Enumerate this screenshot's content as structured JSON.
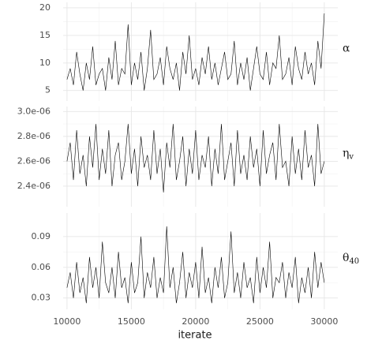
{
  "chart_data": {
    "type": "line",
    "x_label": "iterate",
    "color": "#000000",
    "grid": true,
    "xlim": [
      9700,
      31050
    ],
    "xticks": [
      10000,
      15000,
      20000,
      25000,
      30000
    ],
    "x": [
      10000,
      10250,
      10500,
      10750,
      11000,
      11250,
      11500,
      11750,
      12000,
      12250,
      12500,
      12750,
      13000,
      13250,
      13500,
      13750,
      14000,
      14250,
      14500,
      14750,
      15000,
      15250,
      15500,
      15750,
      16000,
      16250,
      16500,
      16750,
      17000,
      17250,
      17500,
      17750,
      18000,
      18250,
      18500,
      18750,
      19000,
      19250,
      19500,
      19750,
      20000,
      20250,
      20500,
      20750,
      21000,
      21250,
      21500,
      21750,
      22000,
      22250,
      22500,
      22750,
      23000,
      23250,
      23500,
      23750,
      24000,
      24250,
      24500,
      24750,
      25000,
      25250,
      25500,
      25750,
      26000,
      26250,
      26500,
      26750,
      27000,
      27250,
      27500,
      27750,
      28000,
      28250,
      28500,
      28750,
      29000,
      29250,
      29500,
      29750,
      30000
    ],
    "panels": [
      {
        "strip": {
          "symbol": "α"
        },
        "ylim": [
          3.1,
          21
        ],
        "yticks": [
          5,
          10,
          15,
          20
        ],
        "values": [
          7,
          9,
          6,
          12,
          8,
          5,
          10,
          7,
          13,
          6,
          8,
          9,
          5,
          11,
          7,
          14,
          6,
          9,
          8,
          17,
          6,
          10,
          7,
          12,
          5,
          9,
          16,
          7,
          8,
          11,
          6,
          13,
          9,
          7,
          10,
          5,
          12,
          8,
          15,
          7,
          9,
          6,
          11,
          8,
          13,
          7,
          10,
          6,
          9,
          12,
          7,
          8,
          14,
          6,
          10,
          7,
          11,
          5,
          9,
          13,
          8,
          7,
          12,
          6,
          10,
          9,
          15,
          7,
          8,
          11,
          6,
          13,
          9,
          7,
          12,
          8,
          10,
          6,
          14,
          9,
          19
        ]
      },
      {
        "strip": {
          "symbol": "η",
          "subscript": "v"
        },
        "ylim": [
          2.235e-06,
          3.04e-06
        ],
        "yticks": [
          {
            "value": 2.4e-06,
            "label": "2.4e-06"
          },
          {
            "value": 2.6e-06,
            "label": "2.6e-06"
          },
          {
            "value": 2.8e-06,
            "label": "2.8e-06"
          },
          {
            "value": 3e-06,
            "label": "3.0e-06"
          }
        ],
        "values": [
          2.6e-06,
          2.75e-06,
          2.45e-06,
          2.85e-06,
          2.5e-06,
          2.65e-06,
          2.4e-06,
          2.8e-06,
          2.55e-06,
          2.9e-06,
          2.45e-06,
          2.7e-06,
          2.5e-06,
          2.85e-06,
          2.4e-06,
          2.65e-06,
          2.75e-06,
          2.45e-06,
          2.6e-06,
          2.9e-06,
          2.5e-06,
          2.7e-06,
          2.4e-06,
          2.8e-06,
          2.55e-06,
          2.65e-06,
          2.45e-06,
          2.85e-06,
          2.5e-06,
          2.7e-06,
          2.35e-06,
          2.75e-06,
          2.55e-06,
          2.9e-06,
          2.45e-06,
          2.6e-06,
          2.8e-06,
          2.4e-06,
          2.7e-06,
          2.5e-06,
          2.85e-06,
          2.45e-06,
          2.65e-06,
          2.55e-06,
          2.8e-06,
          2.4e-06,
          2.7e-06,
          2.5e-06,
          2.9e-06,
          2.45e-06,
          2.6e-06,
          2.75e-06,
          2.4e-06,
          2.85e-06,
          2.5e-06,
          2.65e-06,
          2.45e-06,
          2.8e-06,
          2.55e-06,
          2.7e-06,
          2.4e-06,
          2.85e-06,
          2.5e-06,
          2.65e-06,
          2.75e-06,
          2.45e-06,
          2.9e-06,
          2.55e-06,
          2.6e-06,
          2.4e-06,
          2.8e-06,
          2.5e-06,
          2.7e-06,
          2.45e-06,
          2.85e-06,
          2.55e-06,
          2.65e-06,
          2.4e-06,
          2.9e-06,
          2.5e-06,
          2.6e-06
        ]
      },
      {
        "strip": {
          "symbol": "θ",
          "subscript": "40"
        },
        "ylim": [
          0.019,
          0.113
        ],
        "yticks": [
          0.03,
          0.06,
          0.09
        ],
        "values": [
          0.04,
          0.055,
          0.03,
          0.065,
          0.035,
          0.05,
          0.025,
          0.07,
          0.04,
          0.06,
          0.03,
          0.085,
          0.045,
          0.035,
          0.06,
          0.03,
          0.075,
          0.04,
          0.05,
          0.025,
          0.065,
          0.035,
          0.045,
          0.09,
          0.03,
          0.055,
          0.04,
          0.07,
          0.03,
          0.05,
          0.035,
          0.1,
          0.04,
          0.06,
          0.025,
          0.045,
          0.075,
          0.03,
          0.055,
          0.04,
          0.065,
          0.03,
          0.08,
          0.035,
          0.05,
          0.025,
          0.06,
          0.04,
          0.07,
          0.03,
          0.045,
          0.095,
          0.035,
          0.055,
          0.03,
          0.065,
          0.04,
          0.05,
          0.025,
          0.07,
          0.035,
          0.06,
          0.04,
          0.085,
          0.03,
          0.05,
          0.045,
          0.065,
          0.03,
          0.055,
          0.04,
          0.07,
          0.025,
          0.05,
          0.035,
          0.06,
          0.03,
          0.075,
          0.04,
          0.065,
          0.045
        ]
      }
    ]
  }
}
